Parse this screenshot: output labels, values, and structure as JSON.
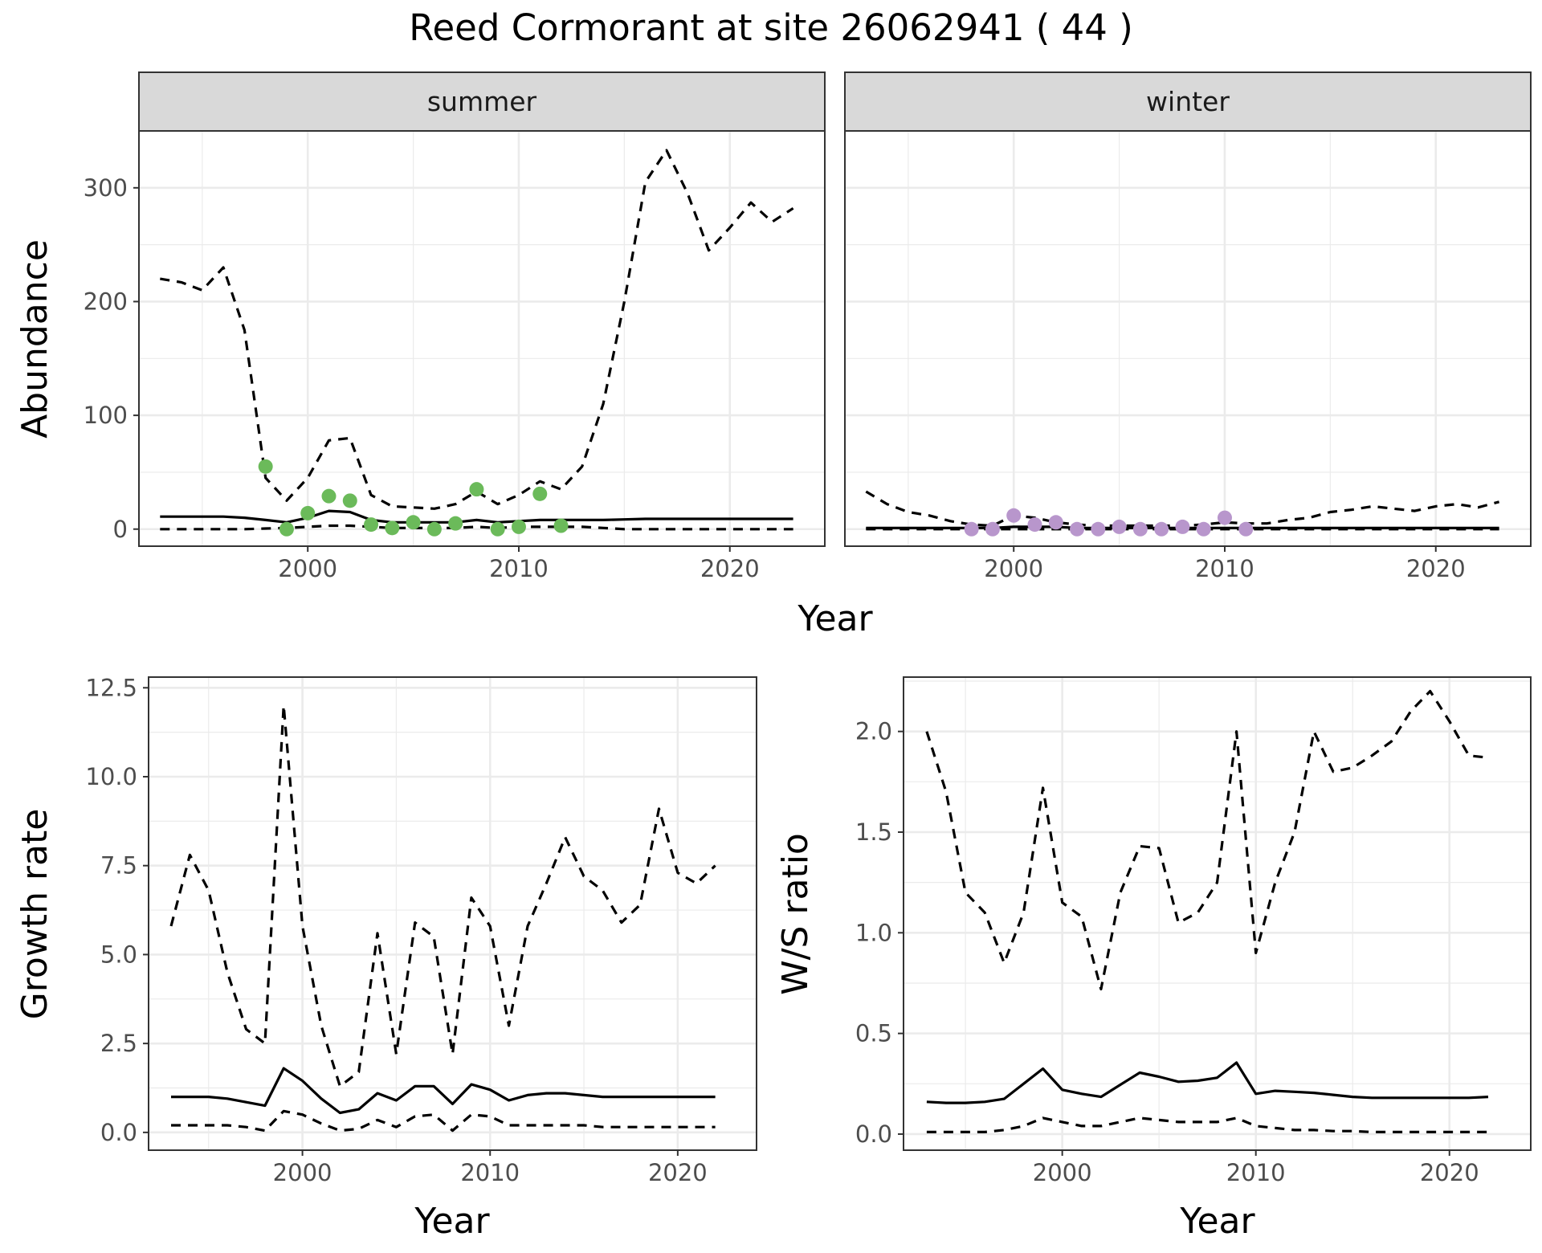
{
  "title": "Reed Cormorant at site 26062941 ( 44 )",
  "colors": {
    "summer_points": "#6bba5a",
    "winter_points": "#b896cc",
    "strip_bg": "#d9d9d9",
    "grid": "#ebebeb",
    "lines": "#000000"
  },
  "chart_data": [
    {
      "id": "abundance",
      "type": "line",
      "facets": [
        "summer",
        "winter"
      ],
      "xlabel": "Year",
      "ylabel": "Abundance",
      "xlim": [
        1992,
        2024.5
      ],
      "ylim": [
        -15,
        350
      ],
      "xticks": [
        2000,
        2010,
        2020
      ],
      "yticks": [
        0,
        100,
        200,
        300
      ],
      "x": [
        1993,
        1994,
        1995,
        1996,
        1997,
        1998,
        1999,
        2000,
        2001,
        2002,
        2003,
        2004,
        2005,
        2006,
        2007,
        2008,
        2009,
        2010,
        2011,
        2012,
        2013,
        2014,
        2015,
        2016,
        2017,
        2018,
        2019,
        2020,
        2021,
        2022,
        2023
      ],
      "summer": {
        "mean": [
          11,
          11,
          11,
          11,
          10,
          8,
          6,
          10,
          16,
          15,
          8,
          6,
          6,
          6,
          6,
          8,
          6,
          7,
          8,
          8,
          8,
          8,
          8.5,
          9,
          9,
          9,
          9,
          9,
          9,
          9,
          9
        ],
        "upper": [
          220,
          217,
          210,
          230,
          175,
          45,
          25,
          45,
          78,
          80,
          30,
          20,
          19,
          18,
          22,
          33,
          22,
          30,
          42,
          35,
          55,
          110,
          200,
          305,
          333,
          295,
          245,
          265,
          287,
          270,
          282
        ],
        "lower": [
          0,
          0,
          0,
          0,
          0,
          0.5,
          1,
          2,
          3,
          3,
          2,
          1,
          1,
          1,
          1,
          2,
          1,
          2,
          2,
          2,
          2,
          1,
          0,
          0,
          0,
          0,
          0,
          0,
          0,
          0,
          0
        ],
        "points": [
          {
            "x": 1998,
            "y": 55
          },
          {
            "x": 1999,
            "y": 0
          },
          {
            "x": 2000,
            "y": 14
          },
          {
            "x": 2001,
            "y": 29
          },
          {
            "x": 2002,
            "y": 25
          },
          {
            "x": 2003,
            "y": 4
          },
          {
            "x": 2004,
            "y": 1
          },
          {
            "x": 2005,
            "y": 6
          },
          {
            "x": 2006,
            "y": 0
          },
          {
            "x": 2007,
            "y": 5
          },
          {
            "x": 2008,
            "y": 35
          },
          {
            "x": 2009,
            "y": 0
          },
          {
            "x": 2010,
            "y": 2
          },
          {
            "x": 2011,
            "y": 31
          },
          {
            "x": 2012,
            "y": 3
          }
        ]
      },
      "winter": {
        "mean": [
          1,
          1,
          1,
          1,
          1,
          1,
          1,
          2,
          2,
          2,
          1,
          1,
          1,
          1,
          1,
          1,
          1,
          1,
          1,
          1,
          1,
          1,
          1,
          1,
          1,
          1,
          1,
          1,
          1,
          1,
          1
        ],
        "upper": [
          33,
          22,
          15,
          12,
          7,
          4,
          3,
          12,
          10,
          6,
          4,
          3,
          3,
          3,
          3,
          3,
          4,
          6,
          5,
          5,
          8,
          10,
          15,
          17,
          20,
          18,
          16,
          20,
          22,
          19,
          24
        ],
        "lower": [
          0,
          0,
          0,
          0,
          0,
          0,
          0,
          0,
          0,
          0,
          0,
          0,
          0,
          0,
          0,
          0,
          0,
          0,
          0,
          0,
          0,
          0,
          0,
          0,
          0,
          0,
          0,
          0,
          0,
          0,
          0
        ],
        "points": [
          {
            "x": 1998,
            "y": 0
          },
          {
            "x": 1999,
            "y": 0
          },
          {
            "x": 2000,
            "y": 12
          },
          {
            "x": 2001,
            "y": 4
          },
          {
            "x": 2002,
            "y": 6
          },
          {
            "x": 2003,
            "y": 0
          },
          {
            "x": 2004,
            "y": 0
          },
          {
            "x": 2005,
            "y": 2
          },
          {
            "x": 2006,
            "y": 0
          },
          {
            "x": 2007,
            "y": 0
          },
          {
            "x": 2008,
            "y": 2
          },
          {
            "x": 2009,
            "y": 0
          },
          {
            "x": 2010,
            "y": 10
          },
          {
            "x": 2011,
            "y": 0
          }
        ]
      }
    },
    {
      "id": "growth",
      "type": "line",
      "xlabel": "Year",
      "ylabel": "Growth rate",
      "xlim": [
        1991.8,
        2024.2
      ],
      "ylim": [
        -0.5,
        12.8
      ],
      "xticks": [
        2000,
        2010,
        2020
      ],
      "yticks": [
        0.0,
        2.5,
        5.0,
        7.5,
        10.0,
        12.5
      ],
      "ytick_labels": [
        "0.0",
        "2.5",
        "5.0",
        "7.5",
        "10.0",
        "12.5"
      ],
      "x": [
        1993,
        1994,
        1995,
        1996,
        1997,
        1998,
        1999,
        2000,
        2001,
        2002,
        2003,
        2004,
        2005,
        2006,
        2007,
        2008,
        2009,
        2010,
        2011,
        2012,
        2013,
        2014,
        2015,
        2016,
        2017,
        2018,
        2019,
        2020,
        2021,
        2022
      ],
      "mean": [
        1.0,
        1.0,
        1.0,
        0.95,
        0.85,
        0.75,
        1.8,
        1.45,
        0.95,
        0.55,
        0.65,
        1.1,
        0.9,
        1.3,
        1.3,
        0.8,
        1.35,
        1.2,
        0.9,
        1.05,
        1.1,
        1.1,
        1.05,
        1.0,
        1.0,
        1.0,
        1.0,
        1.0,
        1.0,
        1.0
      ],
      "upper": [
        5.8,
        7.8,
        6.8,
        4.5,
        2.9,
        2.5,
        12.0,
        5.8,
        3.0,
        1.3,
        1.7,
        5.6,
        2.2,
        5.9,
        5.5,
        2.2,
        6.6,
        5.8,
        3.0,
        5.8,
        7.0,
        8.3,
        7.2,
        6.8,
        5.9,
        6.4,
        9.1,
        7.3,
        7.0,
        7.5
      ],
      "lower": [
        0.2,
        0.2,
        0.2,
        0.2,
        0.15,
        0.05,
        0.6,
        0.5,
        0.25,
        0.05,
        0.1,
        0.35,
        0.15,
        0.45,
        0.5,
        0.05,
        0.5,
        0.45,
        0.2,
        0.2,
        0.2,
        0.2,
        0.2,
        0.15,
        0.15,
        0.15,
        0.15,
        0.15,
        0.15,
        0.15
      ]
    },
    {
      "id": "ws_ratio",
      "type": "line",
      "xlabel": "Year",
      "ylabel": "W/S ratio",
      "xlim": [
        1991.8,
        2024.2
      ],
      "ylim": [
        -0.08,
        2.27
      ],
      "xticks": [
        2000,
        2010,
        2020
      ],
      "yticks": [
        0.0,
        0.5,
        1.0,
        1.5,
        2.0
      ],
      "ytick_labels": [
        "0.0",
        "0.5",
        "1.0",
        "1.5",
        "2.0"
      ],
      "x": [
        1993,
        1994,
        1995,
        1996,
        1997,
        1998,
        1999,
        2000,
        2001,
        2002,
        2003,
        2004,
        2005,
        2006,
        2007,
        2008,
        2009,
        2010,
        2011,
        2012,
        2013,
        2014,
        2015,
        2016,
        2017,
        2018,
        2019,
        2020,
        2021,
        2022
      ],
      "mean": [
        0.16,
        0.155,
        0.155,
        0.16,
        0.175,
        0.25,
        0.325,
        0.22,
        0.2,
        0.185,
        0.245,
        0.305,
        0.285,
        0.26,
        0.265,
        0.28,
        0.355,
        0.2,
        0.215,
        0.21,
        0.205,
        0.195,
        0.185,
        0.18,
        0.18,
        0.18,
        0.18,
        0.18,
        0.18,
        0.185
      ],
      "upper": [
        2.0,
        1.7,
        1.2,
        1.1,
        0.85,
        1.1,
        1.72,
        1.15,
        1.08,
        0.72,
        1.2,
        1.43,
        1.42,
        1.05,
        1.1,
        1.25,
        2.0,
        0.9,
        1.25,
        1.5,
        2.0,
        1.8,
        1.82,
        1.88,
        1.95,
        2.1,
        2.2,
        2.05,
        1.88,
        1.87
      ],
      "lower": [
        0.01,
        0.01,
        0.01,
        0.01,
        0.02,
        0.04,
        0.08,
        0.06,
        0.04,
        0.04,
        0.06,
        0.08,
        0.07,
        0.06,
        0.06,
        0.06,
        0.08,
        0.04,
        0.03,
        0.02,
        0.02,
        0.015,
        0.015,
        0.01,
        0.01,
        0.01,
        0.01,
        0.01,
        0.01,
        0.01
      ]
    }
  ]
}
